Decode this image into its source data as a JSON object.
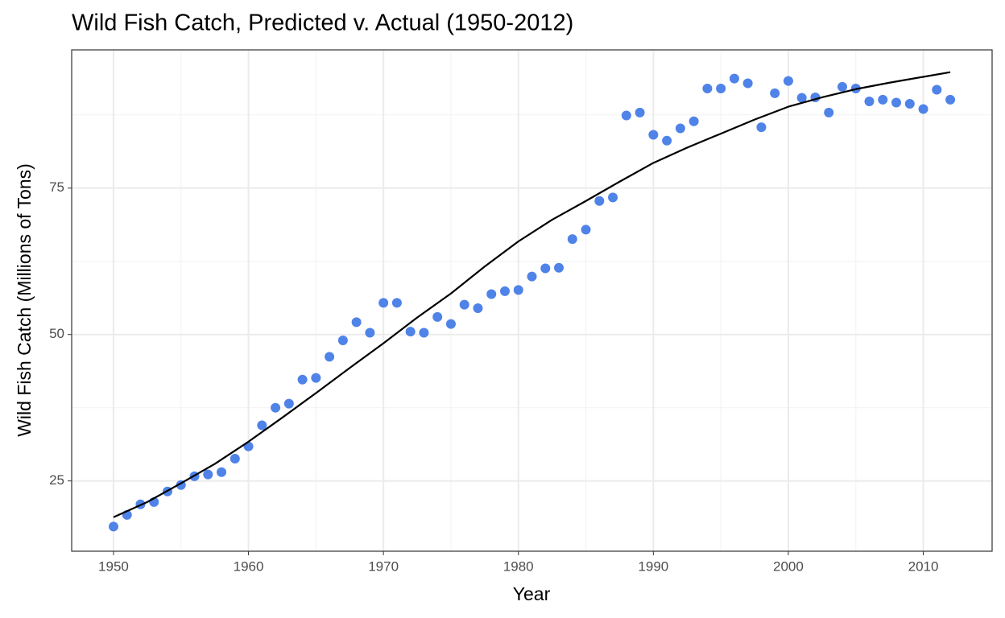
{
  "chart_data": {
    "type": "scatter",
    "title": "Wild Fish Catch, Predicted v. Actual (1950-2012)",
    "x_label": "Year",
    "y_label": "Wild Fish Catch (Millions of Tons)",
    "xlim": [
      1946.9,
      2015.1
    ],
    "ylim": [
      13.0,
      98.6
    ],
    "xticks": [
      1950,
      1960,
      1970,
      1980,
      1990,
      2000,
      2010
    ],
    "yticks": [
      25,
      50,
      75
    ],
    "grid": true,
    "series": [
      {
        "type": "scatter",
        "color": "#4f83e8",
        "x": [
          1950,
          1951,
          1952,
          1953,
          1954,
          1955,
          1956,
          1957,
          1958,
          1959,
          1960,
          1961,
          1962,
          1963,
          1964,
          1965,
          1966,
          1967,
          1968,
          1969,
          1970,
          1971,
          1972,
          1973,
          1974,
          1975,
          1976,
          1977,
          1978,
          1979,
          1980,
          1981,
          1982,
          1983,
          1984,
          1985,
          1986,
          1987,
          1988,
          1989,
          1990,
          1991,
          1992,
          1993,
          1994,
          1995,
          1996,
          1997,
          1998,
          1999,
          2000,
          2001,
          2002,
          2003,
          2004,
          2005,
          2006,
          2007,
          2008,
          2009,
          2010,
          2011,
          2012
        ],
        "values": [
          17.2,
          19.2,
          21.0,
          21.4,
          23.2,
          24.3,
          25.8,
          26.1,
          26.5,
          28.8,
          30.9,
          34.5,
          37.5,
          38.2,
          42.3,
          42.6,
          46.2,
          49.0,
          52.1,
          50.3,
          55.4,
          55.4,
          50.5,
          50.3,
          53.0,
          51.8,
          55.1,
          54.5,
          56.9,
          57.4,
          57.6,
          59.9,
          61.3,
          61.4,
          66.3,
          67.9,
          72.8,
          73.4,
          87.4,
          87.9,
          84.1,
          83.1,
          85.2,
          86.4,
          92.0,
          92.0,
          93.7,
          92.9,
          85.4,
          91.2,
          93.3,
          90.4,
          90.5,
          87.9,
          92.3,
          92.0,
          89.8,
          90.1,
          89.6,
          89.4,
          88.5,
          91.8,
          90.1
        ]
      },
      {
        "type": "line",
        "color": "#000000",
        "x": [
          1950,
          1952.5,
          1955,
          1957.5,
          1960,
          1962.5,
          1965,
          1967.5,
          1970,
          1972.5,
          1975,
          1977.5,
          1980,
          1982.5,
          1985,
          1987.5,
          1990,
          1992.5,
          1995,
          1997.5,
          2000,
          2002.5,
          2005,
          2007.5,
          2010,
          2012
        ],
        "values": [
          18.8,
          21.4,
          24.6,
          27.9,
          31.7,
          35.8,
          40.0,
          44.3,
          48.5,
          52.9,
          57.0,
          61.6,
          65.9,
          69.6,
          72.8,
          76.1,
          79.3,
          81.9,
          84.3,
          86.7,
          88.9,
          90.5,
          91.9,
          93.0,
          94.0,
          94.8
        ]
      }
    ]
  }
}
